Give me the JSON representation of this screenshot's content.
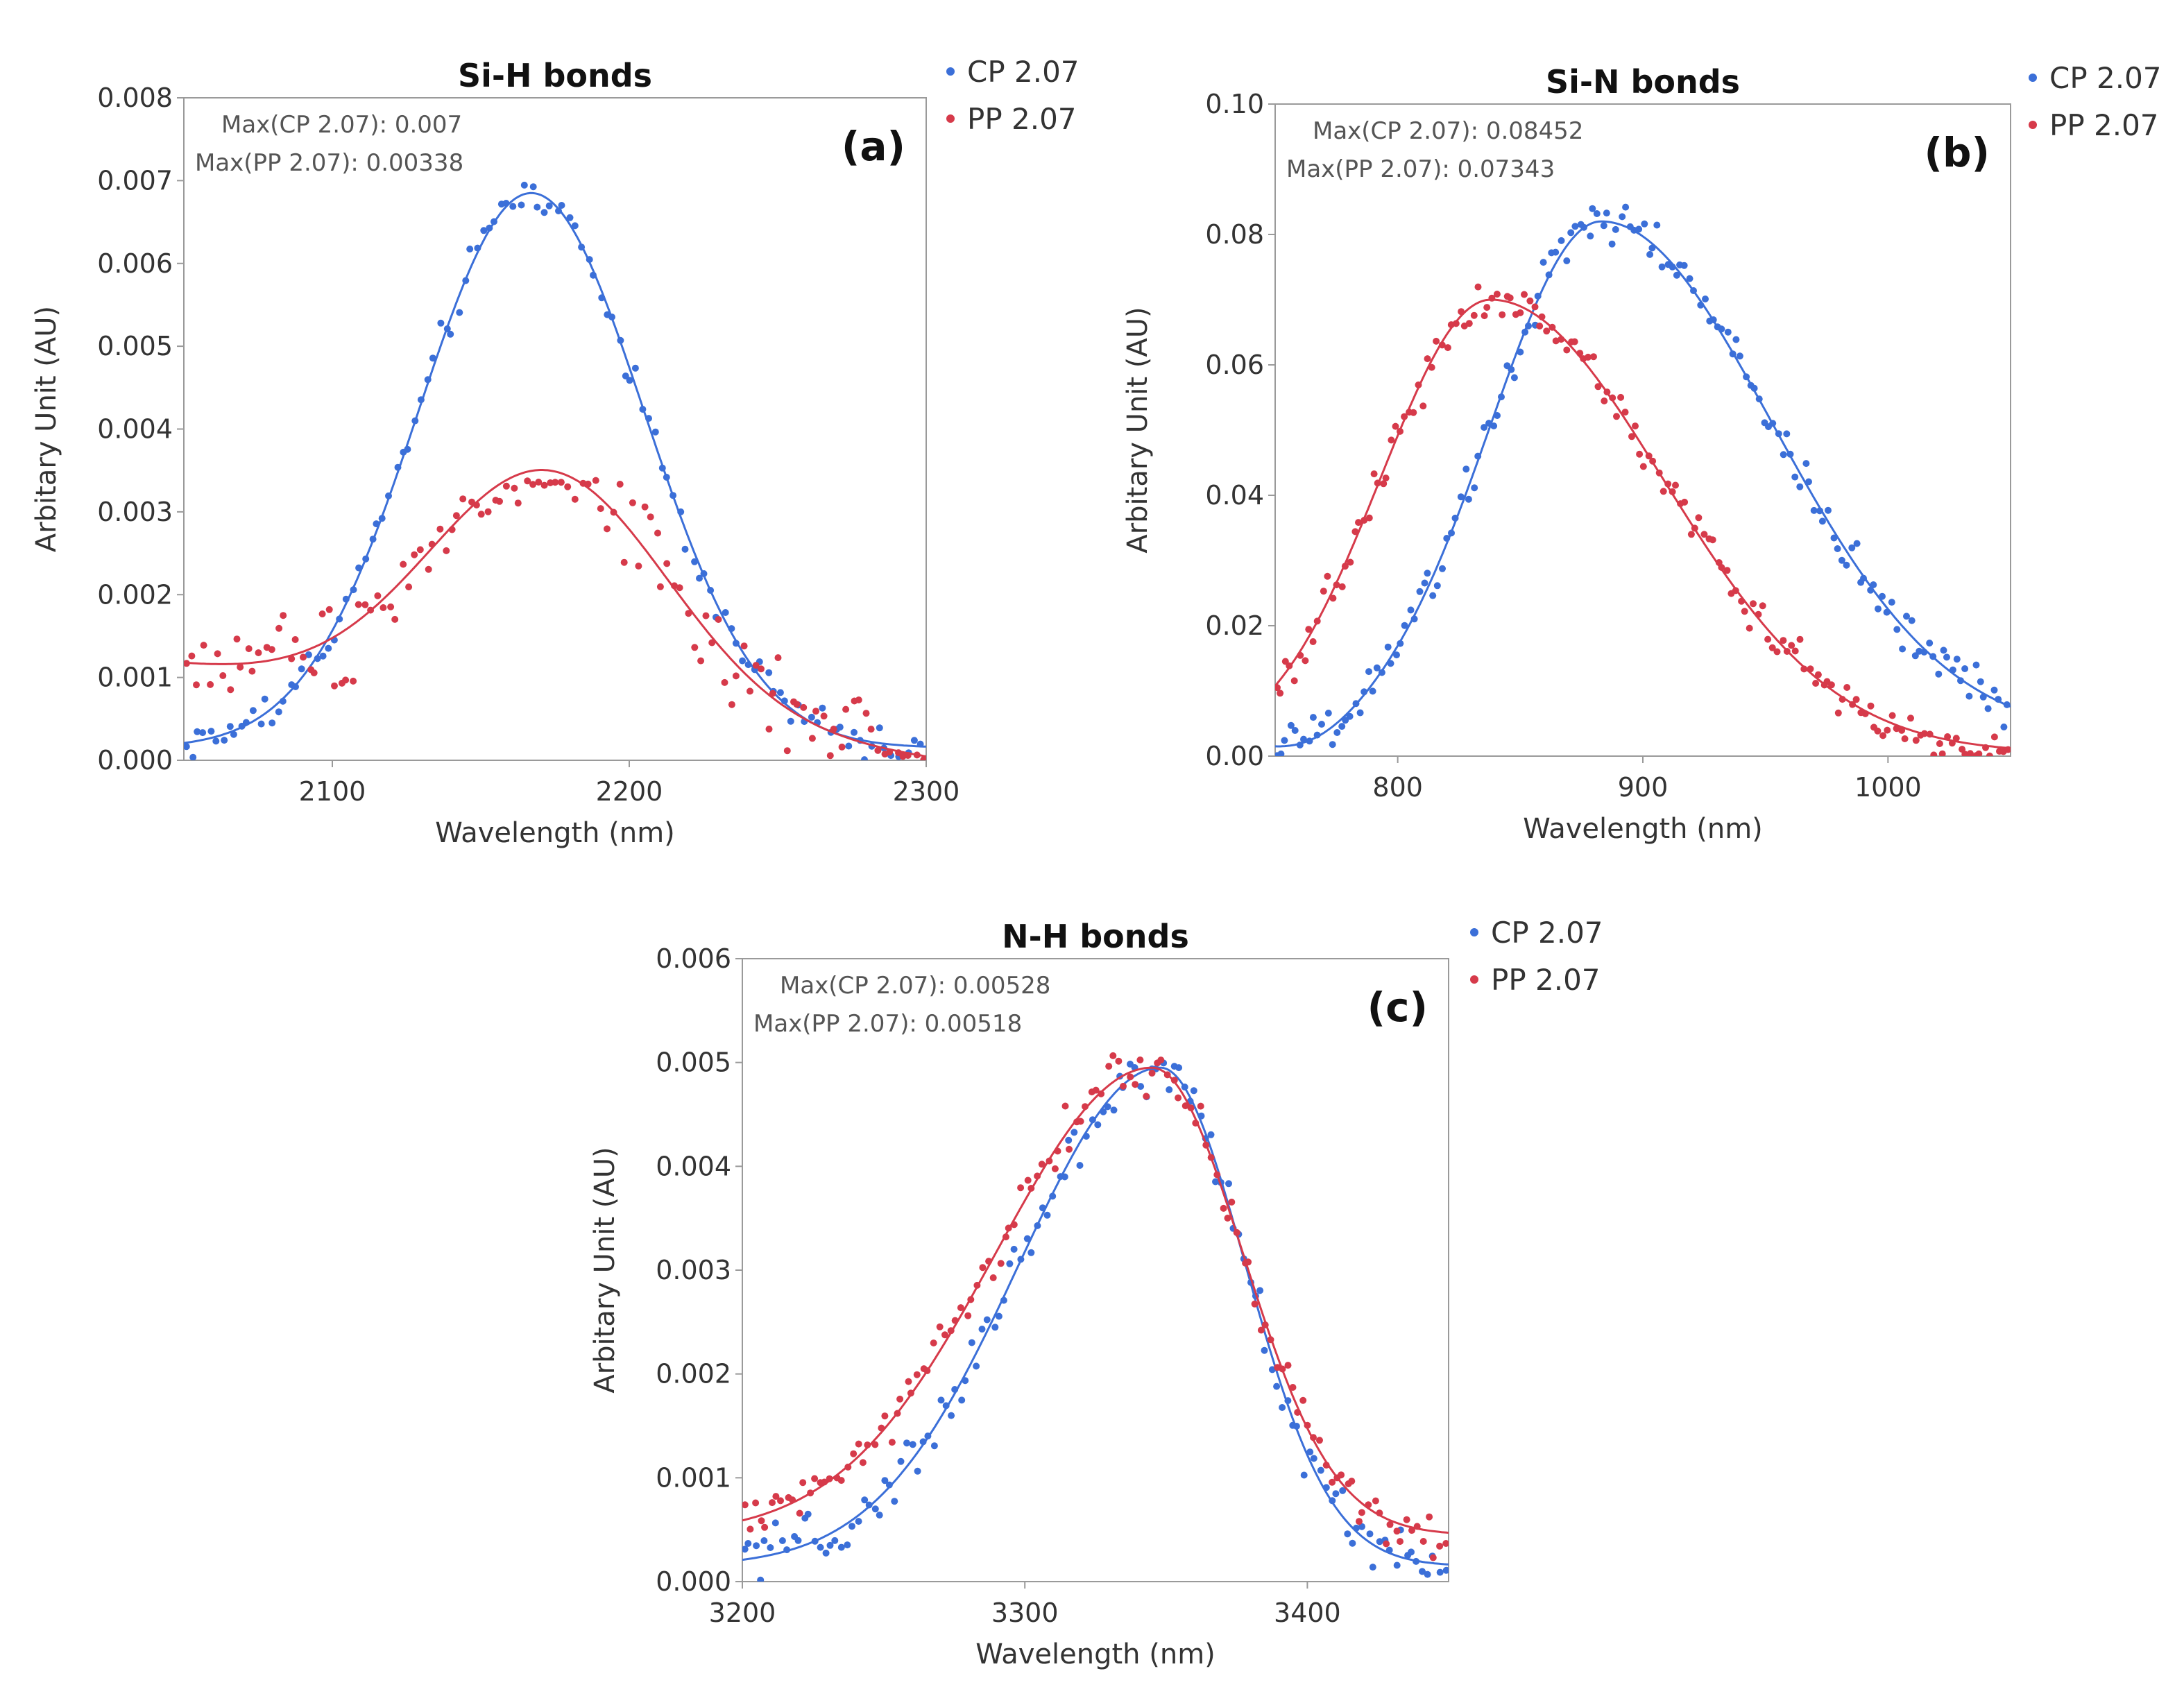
{
  "colors": {
    "cp": "#3b6fd8",
    "pp": "#d63a4a"
  },
  "chart_data": [
    {
      "type": "scatter",
      "panel": "(a)",
      "title": "Si-H bonds",
      "xlabel": "Wavelength (nm)",
      "ylabel": "Arbitary Unit (AU)",
      "xlim": [
        2050,
        2300
      ],
      "ylim": [
        0,
        0.008
      ],
      "xticks": [
        2100,
        2200,
        2300
      ],
      "yticks": [
        "0.000",
        "0.001",
        "0.002",
        "0.003",
        "0.004",
        "0.005",
        "0.006",
        "0.007",
        "0.008"
      ],
      "annotations": [
        "Max(CP 2.07): 0.007",
        "Max(PP 2.07): 0.00338"
      ],
      "legend_position": "outside-top-right",
      "series": [
        {
          "name": "CP 2.07",
          "color": "#3b6fd8",
          "fit": {
            "model": "gaussian",
            "amp": 0.0067,
            "center": 2167,
            "sigma": 38,
            "base": 0.00015,
            "slope": 0
          },
          "points": {
            "count": 120,
            "noise": 0.00012,
            "max": 0.007
          }
        },
        {
          "name": "PP 2.07",
          "color": "#d63a4a",
          "fit": {
            "model": "gaussian",
            "amp": 0.0029,
            "center": 2173,
            "sigma": 40,
            "base": 0.0006,
            "slope": -4.5e-06
          },
          "points": {
            "count": 120,
            "noise": 0.00028,
            "max": 0.00338
          }
        }
      ]
    },
    {
      "type": "scatter",
      "panel": "(b)",
      "title": "Si-N bonds",
      "xlabel": "Wavelength (nm)",
      "ylabel": "Arbitary Unit (AU)",
      "xlim": [
        750,
        1050
      ],
      "ylim": [
        0,
        0.1
      ],
      "xticks": [
        800,
        900,
        1000
      ],
      "yticks": [
        "0.00",
        "0.02",
        "0.04",
        "0.06",
        "0.08",
        "0.10"
      ],
      "annotations": [
        "Max(CP 2.07): 0.08452",
        "Max(PP 2.07): 0.07343"
      ],
      "legend_position": "outside-top-right",
      "series": [
        {
          "name": "CP 2.07",
          "color": "#3b6fd8",
          "fit": {
            "model": "skewgauss",
            "amp": 0.079,
            "center": 883,
            "sigmaL": 45,
            "sigmaR": 70,
            "base": 0.003,
            "dip": {
              "center": 762,
              "width": 20,
              "depth": 0.003
            }
          },
          "points": {
            "count": 160,
            "noise": 0.0018,
            "max": 0.08452
          }
        },
        {
          "name": "PP 2.07",
          "color": "#d63a4a",
          "fit": {
            "model": "skewgauss",
            "amp": 0.0695,
            "center": 838,
            "sigmaL": 45,
            "sigmaR": 70,
            "base": 0.0005
          },
          "points": {
            "count": 160,
            "noise": 0.0016,
            "max": 0.07343
          }
        }
      ]
    },
    {
      "type": "scatter",
      "panel": "(c)",
      "title": "N-H bonds",
      "xlabel": "Wavelength (nm)",
      "ylabel": "Arbitary Unit (AU)",
      "xlim": [
        3200,
        3450
      ],
      "ylim": [
        0,
        0.006
      ],
      "xticks": [
        3200,
        3300,
        3400
      ],
      "yticks": [
        "0.000",
        "0.001",
        "0.002",
        "0.003",
        "0.004",
        "0.005",
        "0.006"
      ],
      "annotations": [
        "Max(CP 2.07): 0.00528",
        "Max(PP 2.07): 0.00518"
      ],
      "legend_position": "outside-top-right",
      "series": [
        {
          "name": "CP 2.07",
          "color": "#3b6fd8",
          "fit": {
            "model": "skewgauss",
            "amp": 0.0048,
            "center": 3348,
            "sigmaL": 50,
            "sigmaR": 30,
            "base": 0.00015
          },
          "points": {
            "count": 130,
            "noise": 0.00012,
            "max": 0.00528
          }
        },
        {
          "name": "PP 2.07",
          "color": "#d63a4a",
          "fit": {
            "model": "skewgauss",
            "amp": 0.0045,
            "center": 3345,
            "sigmaL": 55,
            "sigmaR": 32,
            "base": 0.00045
          },
          "points": {
            "count": 130,
            "noise": 0.00012,
            "max": 0.00518
          }
        }
      ]
    }
  ]
}
